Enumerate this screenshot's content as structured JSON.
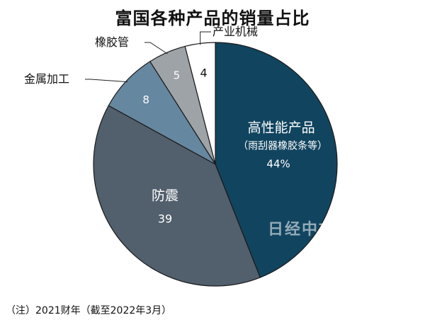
{
  "title": "富国各种产品的销量占比",
  "footnote": "（注）2021财年（截至2022年3月）",
  "watermark": "日经中文网",
  "chart_data": {
    "type": "pie",
    "title": "富国各种产品的销量占比",
    "unit": "%",
    "slices": [
      {
        "name": "高性能产品",
        "sub_label": "（雨刮器橡胶条等）",
        "value": 44,
        "value_label": "44%",
        "color": "#11445f"
      },
      {
        "name": "防震",
        "value": 39,
        "value_label": "39",
        "color": "#525f6d"
      },
      {
        "name": "金属加工",
        "value": 8,
        "value_label": "8",
        "color": "#6687a0"
      },
      {
        "name": "橡胶管",
        "value": 5,
        "value_label": "5",
        "color": "#9ea3a7"
      },
      {
        "name": "产业机械",
        "value": 4,
        "value_label": "4",
        "color": "#ffffff"
      }
    ],
    "start": "12 o'clock",
    "direction": "clockwise",
    "legend": "none"
  }
}
